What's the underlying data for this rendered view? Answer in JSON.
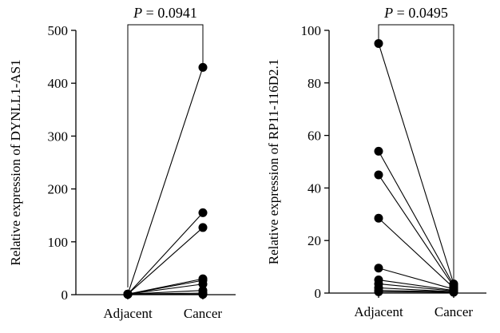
{
  "chart_data": [
    {
      "type": "scatter",
      "title": "",
      "xlabel": "",
      "ylabel": "Relative expression of DYNLL1-AS1",
      "categories": [
        "Adjacent",
        "Cancer"
      ],
      "ylim": [
        0,
        500
      ],
      "yticks": [
        0,
        100,
        200,
        300,
        400,
        500
      ],
      "annotation": "P = 0.0941",
      "pairs": [
        [
          1,
          430
        ],
        [
          1,
          155
        ],
        [
          1,
          127
        ],
        [
          1,
          30
        ],
        [
          1,
          27
        ],
        [
          1,
          20
        ],
        [
          1,
          8
        ],
        [
          1,
          3
        ],
        [
          0.5,
          1
        ],
        [
          0.5,
          0.5
        ]
      ]
    },
    {
      "type": "scatter",
      "title": "",
      "xlabel": "",
      "ylabel": "Relative expression of RP11-116D2.1",
      "categories": [
        "Adjacent",
        "Cancer"
      ],
      "ylim": [
        0,
        100
      ],
      "yticks": [
        0,
        20,
        40,
        60,
        80,
        100
      ],
      "annotation": "P = 0.0495",
      "pairs": [
        [
          95,
          3.5
        ],
        [
          54,
          3
        ],
        [
          45,
          2.5
        ],
        [
          28.5,
          2
        ],
        [
          9.5,
          1.5
        ],
        [
          5,
          1
        ],
        [
          3.5,
          0.8
        ],
        [
          2,
          0.5
        ],
        [
          1,
          0.5
        ],
        [
          0.5,
          0.3
        ]
      ]
    }
  ]
}
